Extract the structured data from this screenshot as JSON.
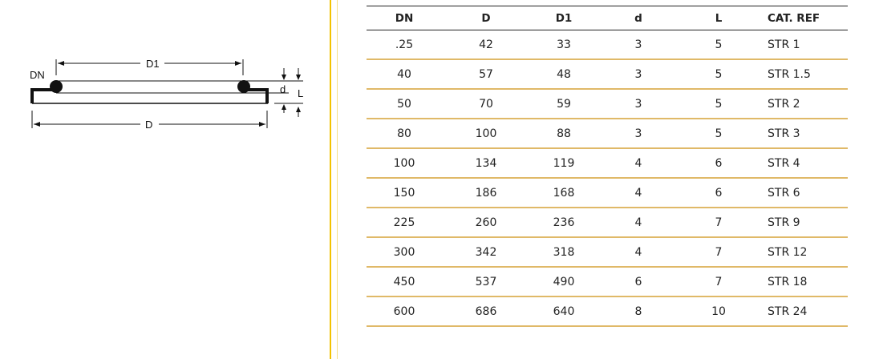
{
  "diagram": {
    "labels": {
      "dn": "DN",
      "d1": "D1",
      "d_outer": "D",
      "d_small": "d",
      "l": "L"
    }
  },
  "table": {
    "headers": [
      "DN",
      "D",
      "D1",
      "d",
      "L",
      "CAT. REF"
    ],
    "rows": [
      [
        ".25",
        "42",
        "33",
        "3",
        "5",
        "STR 1"
      ],
      [
        "40",
        "57",
        "48",
        "3",
        "5",
        "STR 1.5"
      ],
      [
        "50",
        "70",
        "59",
        "3",
        "5",
        "STR 2"
      ],
      [
        "80",
        "100",
        "88",
        "3",
        "5",
        "STR 3"
      ],
      [
        "100",
        "134",
        "119",
        "4",
        "6",
        "STR 4"
      ],
      [
        "150",
        "186",
        "168",
        "4",
        "6",
        "STR 6"
      ],
      [
        "225",
        "260",
        "236",
        "4",
        "7",
        "STR 9"
      ],
      [
        "300",
        "342",
        "318",
        "4",
        "7",
        "STR 12"
      ],
      [
        "450",
        "537",
        "490",
        "6",
        "7",
        "STR 18"
      ],
      [
        "600",
        "686",
        "640",
        "8",
        "10",
        "STR 24"
      ]
    ]
  },
  "colors": {
    "accent": "#f2c200",
    "row_divider": "#e0b968"
  }
}
